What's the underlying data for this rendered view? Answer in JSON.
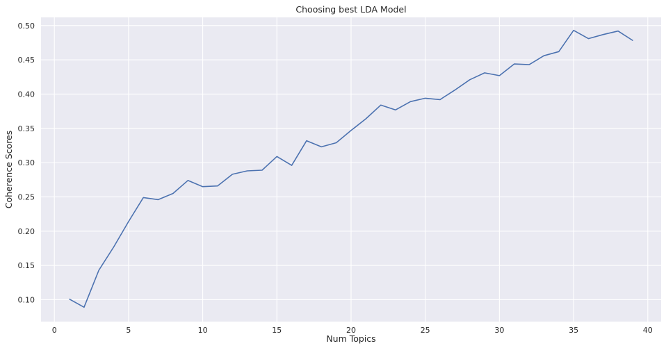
{
  "chart_data": {
    "type": "line",
    "title": "Choosing best LDA Model",
    "xlabel": "Num Topics",
    "ylabel": "Coherence Scores",
    "xlim": [
      -0.9,
      40.9
    ],
    "ylim": [
      0.068,
      0.512
    ],
    "xticks": [
      0,
      5,
      10,
      15,
      20,
      25,
      30,
      35,
      40
    ],
    "xtick_labels": [
      "0",
      "5",
      "10",
      "15",
      "20",
      "25",
      "30",
      "35",
      "40"
    ],
    "yticks": [
      0.1,
      0.15,
      0.2,
      0.25,
      0.3,
      0.35,
      0.4,
      0.45,
      0.5
    ],
    "ytick_labels": [
      "0.10",
      "0.15",
      "0.20",
      "0.25",
      "0.30",
      "0.35",
      "0.40",
      "0.45",
      "0.50"
    ],
    "grid": true,
    "background_color": "#eaeaf2",
    "grid_color": "#ffffff",
    "series": [
      {
        "color": "#4c72b0",
        "x": [
          1,
          2,
          3,
          4,
          5,
          6,
          7,
          8,
          9,
          10,
          11,
          12,
          13,
          14,
          15,
          16,
          17,
          18,
          19,
          20,
          21,
          22,
          23,
          24,
          25,
          26,
          27,
          28,
          29,
          30,
          31,
          32,
          33,
          34,
          35,
          36,
          37,
          38,
          39
        ],
        "y": [
          0.101,
          0.089,
          0.143,
          0.177,
          0.214,
          0.249,
          0.246,
          0.255,
          0.274,
          0.265,
          0.266,
          0.283,
          0.288,
          0.289,
          0.309,
          0.296,
          0.332,
          0.323,
          0.329,
          0.347,
          0.364,
          0.384,
          0.377,
          0.389,
          0.394,
          0.392,
          0.406,
          0.421,
          0.431,
          0.427,
          0.444,
          0.443,
          0.456,
          0.462,
          0.493,
          0.481,
          0.487,
          0.492,
          0.478
        ]
      }
    ]
  }
}
